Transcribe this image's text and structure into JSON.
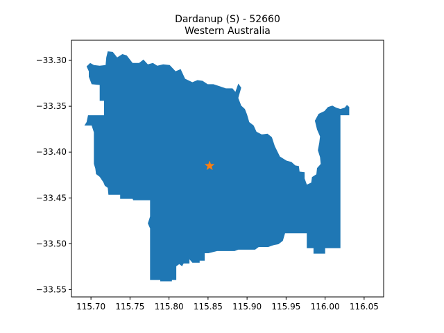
{
  "figure": {
    "title_line1": "Dardanup (S) - 52660",
    "title_line2": "Western Australia"
  },
  "chart_data": {
    "type": "map",
    "region_name": "Dardanup (S) - 52660",
    "state": "Western Australia",
    "fill_color": "#1f77b4",
    "marker": {
      "shape": "star",
      "color": "#ff7f0e",
      "lon": 115.852,
      "lat": -33.415
    },
    "xlim": [
      115.675,
      116.075
    ],
    "ylim": [
      -33.558,
      -33.278
    ],
    "x_ticks": [
      {
        "value": 115.7,
        "label": "115.70"
      },
      {
        "value": 115.75,
        "label": "115.75"
      },
      {
        "value": 115.8,
        "label": "115.80"
      },
      {
        "value": 115.85,
        "label": "115.85"
      },
      {
        "value": 115.9,
        "label": "115.90"
      },
      {
        "value": 115.95,
        "label": "115.95"
      },
      {
        "value": 116.0,
        "label": "116.00"
      },
      {
        "value": 116.05,
        "label": "116.05"
      }
    ],
    "y_ticks": [
      {
        "value": -33.3,
        "label": "−33.30"
      },
      {
        "value": -33.35,
        "label": "−33.35"
      },
      {
        "value": -33.4,
        "label": "−33.40"
      },
      {
        "value": -33.45,
        "label": "−33.45"
      },
      {
        "value": -33.5,
        "label": "−33.50"
      },
      {
        "value": -33.55,
        "label": "−33.55"
      }
    ],
    "boundary": [
      [
        115.7215,
        -33.2901
      ],
      [
        115.728,
        -33.2908
      ],
      [
        115.7336,
        -33.2968
      ],
      [
        115.7402,
        -33.2931
      ],
      [
        115.7458,
        -33.2946
      ],
      [
        115.7533,
        -33.3028
      ],
      [
        115.7617,
        -33.3028
      ],
      [
        115.7673,
        -33.2991
      ],
      [
        115.7729,
        -33.3043
      ],
      [
        115.7794,
        -33.3028
      ],
      [
        115.785,
        -33.3058
      ],
      [
        115.7925,
        -33.3043
      ],
      [
        115.8009,
        -33.305
      ],
      [
        115.8084,
        -33.3118
      ],
      [
        115.8149,
        -33.3095
      ],
      [
        115.8206,
        -33.32
      ],
      [
        115.8299,
        -33.3238
      ],
      [
        115.8364,
        -33.3215
      ],
      [
        115.843,
        -33.3223
      ],
      [
        115.8495,
        -33.326
      ],
      [
        115.857,
        -33.326
      ],
      [
        115.8654,
        -33.3283
      ],
      [
        115.8729,
        -33.3305
      ],
      [
        115.8813,
        -33.3305
      ],
      [
        115.885,
        -33.3343
      ],
      [
        115.8888,
        -33.3253
      ],
      [
        115.8925,
        -33.3298
      ],
      [
        115.8888,
        -33.341
      ],
      [
        115.8925,
        -33.3493
      ],
      [
        115.8972,
        -33.353
      ],
      [
        115.9,
        -33.359
      ],
      [
        115.9028,
        -33.3673
      ],
      [
        115.9084,
        -33.371
      ],
      [
        115.9121,
        -33.3778
      ],
      [
        115.9187,
        -33.3808
      ],
      [
        115.9262,
        -33.38
      ],
      [
        115.9318,
        -33.3838
      ],
      [
        115.9355,
        -33.3935
      ],
      [
        115.9421,
        -33.4048
      ],
      [
        115.9505,
        -33.4093
      ],
      [
        115.957,
        -33.4108
      ],
      [
        115.9617,
        -33.4145
      ],
      [
        115.9664,
        -33.4153
      ],
      [
        115.9673,
        -33.4213
      ],
      [
        115.9738,
        -33.422
      ],
      [
        115.9738,
        -33.4288
      ],
      [
        115.9766,
        -33.4355
      ],
      [
        115.9822,
        -33.4333
      ],
      [
        115.9832,
        -33.4273
      ],
      [
        115.9888,
        -33.4243
      ],
      [
        115.9897,
        -33.4175
      ],
      [
        115.9944,
        -33.413
      ],
      [
        115.9935,
        -33.4055
      ],
      [
        115.9907,
        -33.398
      ],
      [
        115.9925,
        -33.3898
      ],
      [
        115.9935,
        -33.383
      ],
      [
        115.9897,
        -33.3755
      ],
      [
        115.9869,
        -33.3658
      ],
      [
        115.9916,
        -33.3583
      ],
      [
        115.9991,
        -33.3553
      ],
      [
        116.0037,
        -33.3508
      ],
      [
        116.0093,
        -33.3493
      ],
      [
        116.014,
        -33.3515
      ],
      [
        116.0196,
        -33.353
      ],
      [
        116.0252,
        -33.3515
      ],
      [
        116.028,
        -33.3485
      ],
      [
        116.0309,
        -33.3508
      ],
      [
        116.0309,
        -33.3598
      ],
      [
        116.0196,
        -33.3598
      ],
      [
        116.0196,
        -33.43
      ],
      [
        116.0196,
        -33.5048
      ],
      [
        116.0001,
        -33.5048
      ],
      [
        116.0001,
        -33.5108
      ],
      [
        115.9851,
        -33.5108
      ],
      [
        115.9851,
        -33.5048
      ],
      [
        115.9765,
        -33.5048
      ],
      [
        115.9765,
        -33.4885
      ],
      [
        115.9487,
        -33.4885
      ],
      [
        115.9458,
        -33.4968
      ],
      [
        115.9402,
        -33.5005
      ],
      [
        115.9346,
        -33.5013
      ],
      [
        115.9272,
        -33.5035
      ],
      [
        115.915,
        -33.5035
      ],
      [
        115.9103,
        -33.5065
      ],
      [
        115.8888,
        -33.5065
      ],
      [
        115.8841,
        -33.508
      ],
      [
        115.8617,
        -33.508
      ],
      [
        115.8505,
        -33.5103
      ],
      [
        115.8458,
        -33.5103
      ],
      [
        115.8458,
        -33.5185
      ],
      [
        115.8393,
        -33.5185
      ],
      [
        115.8393,
        -33.5208
      ],
      [
        115.8299,
        -33.5208
      ],
      [
        115.8262,
        -33.517
      ],
      [
        115.8262,
        -33.5215
      ],
      [
        115.8187,
        -33.5215
      ],
      [
        115.8168,
        -33.5245
      ],
      [
        115.8131,
        -33.5223
      ],
      [
        115.8093,
        -33.5245
      ],
      [
        115.8093,
        -33.5395
      ],
      [
        115.8037,
        -33.5395
      ],
      [
        115.8037,
        -33.541
      ],
      [
        115.7888,
        -33.541
      ],
      [
        115.7888,
        -33.5395
      ],
      [
        115.7757,
        -33.5395
      ],
      [
        115.7757,
        -33.4833
      ],
      [
        115.7729,
        -33.4778
      ],
      [
        115.7757,
        -33.4703
      ],
      [
        115.7757,
        -33.4525
      ],
      [
        115.7542,
        -33.4525
      ],
      [
        115.7533,
        -33.451
      ],
      [
        115.7374,
        -33.451
      ],
      [
        115.7374,
        -33.4465
      ],
      [
        115.7224,
        -33.4465
      ],
      [
        115.7215,
        -33.439
      ],
      [
        115.7178,
        -33.4368
      ],
      [
        115.7159,
        -33.433
      ],
      [
        115.7112,
        -33.427
      ],
      [
        115.7065,
        -33.424
      ],
      [
        115.7056,
        -33.418
      ],
      [
        115.7037,
        -33.4128
      ],
      [
        115.7037,
        -33.3785
      ],
      [
        115.7009,
        -33.371
      ],
      [
        115.6916,
        -33.371
      ],
      [
        115.6944,
        -33.3673
      ],
      [
        115.6962,
        -33.3598
      ],
      [
        115.7168,
        -33.3598
      ],
      [
        115.7168,
        -33.344
      ],
      [
        115.7112,
        -33.344
      ],
      [
        115.7112,
        -33.3268
      ],
      [
        115.7009,
        -33.326
      ],
      [
        115.6972,
        -33.3178
      ],
      [
        115.6972,
        -33.3118
      ],
      [
        115.6944,
        -33.3065
      ],
      [
        115.699,
        -33.3028
      ],
      [
        115.7037,
        -33.305
      ],
      [
        115.7112,
        -33.3058
      ],
      [
        115.7187,
        -33.305
      ],
      [
        115.7196,
        -33.2968
      ]
    ]
  }
}
